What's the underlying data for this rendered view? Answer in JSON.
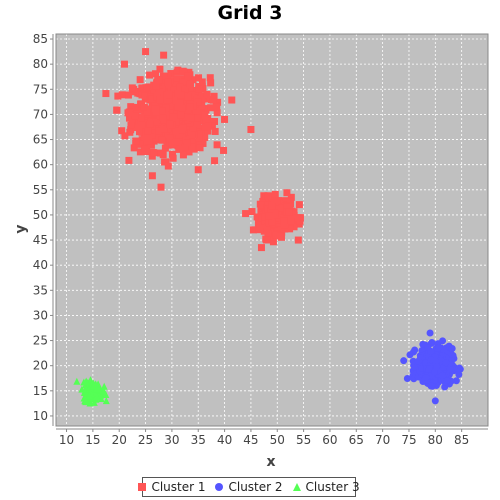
{
  "chart_data": {
    "type": "scatter",
    "title": "Grid 3",
    "xlabel": "x",
    "ylabel": "y",
    "xlim": [
      8,
      90
    ],
    "ylim": [
      8,
      86
    ],
    "x_ticks": [
      10,
      15,
      20,
      25,
      30,
      35,
      40,
      45,
      50,
      55,
      60,
      65,
      70,
      75,
      80,
      85
    ],
    "y_ticks": [
      10,
      15,
      20,
      25,
      30,
      35,
      40,
      45,
      50,
      55,
      60,
      65,
      70,
      75,
      80,
      85
    ],
    "grid": true,
    "legend_position": "bottom",
    "plot_background": "#c0c0c0",
    "series": [
      {
        "name": "Cluster 1",
        "marker": "square",
        "color": "#ff5555",
        "clusters": [
          {
            "center": [
              30,
              70
            ],
            "spread": [
              3.6,
              3.6
            ],
            "count": 900
          },
          {
            "center": [
              50,
              50
            ],
            "spread": [
              1.6,
              1.7
            ],
            "count": 350
          }
        ],
        "outliers": [
          [
            25,
            82.5
          ],
          [
            21,
            80
          ],
          [
            45,
            67
          ],
          [
            47,
            43.5
          ],
          [
            54,
            45
          ],
          [
            35,
            59
          ]
        ]
      },
      {
        "name": "Cluster 2",
        "marker": "circle",
        "color": "#5555ff",
        "clusters": [
          {
            "center": [
              80,
              20
            ],
            "spread": [
              1.6,
              1.7
            ],
            "count": 500
          }
        ],
        "outliers": [
          [
            79,
            26.5
          ],
          [
            80,
            13
          ],
          [
            84,
            17
          ],
          [
            74,
            21
          ]
        ]
      },
      {
        "name": "Cluster 3",
        "marker": "triangle",
        "color": "#55ff55",
        "clusters": [
          {
            "center": [
              15,
              15
            ],
            "spread": [
              0.9,
              0.9
            ],
            "count": 200
          }
        ],
        "outliers": []
      }
    ]
  }
}
